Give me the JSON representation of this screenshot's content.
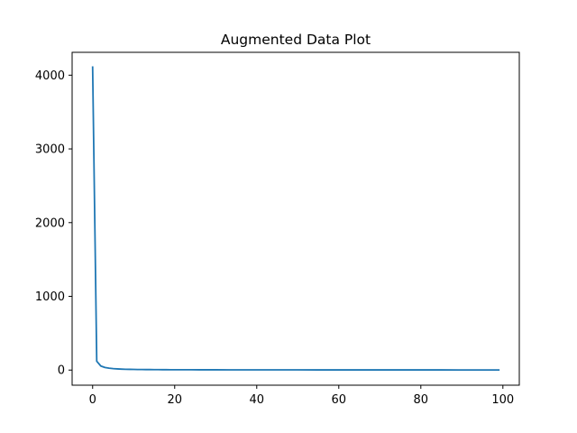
{
  "chart_data": {
    "type": "line",
    "title": "Augmented Data Plot",
    "xlabel": "",
    "ylabel": "",
    "xlim": [
      -5,
      104
    ],
    "ylim": [
      -205,
      4310
    ],
    "x_ticks": [
      0,
      20,
      40,
      60,
      80,
      100
    ],
    "y_ticks": [
      0,
      1000,
      2000,
      3000,
      4000
    ],
    "grid": false,
    "colors": {
      "line": "#1f77b4",
      "axes": "#000000",
      "background": "#ffffff"
    },
    "series": [
      {
        "x": [
          0,
          1,
          2,
          3,
          4,
          5,
          6,
          7,
          8,
          9,
          10,
          11,
          12,
          13,
          14,
          15,
          16,
          17,
          18,
          19,
          20,
          22,
          24,
          26,
          28,
          30,
          35,
          40,
          45,
          50,
          55,
          60,
          65,
          70,
          75,
          80,
          85,
          90,
          95,
          99
        ],
        "values": [
          4110,
          120,
          55,
          35,
          26,
          20,
          16,
          13,
          11,
          10,
          9,
          8,
          7.5,
          7,
          6.5,
          6,
          5.8,
          5.5,
          5.2,
          5,
          4.8,
          4.5,
          4.2,
          4,
          3.8,
          3.6,
          3.3,
          3,
          2.8,
          2.6,
          2.5,
          2.4,
          2.3,
          2.2,
          2.1,
          2,
          2,
          1.9,
          1.9,
          1.8
        ]
      }
    ]
  }
}
